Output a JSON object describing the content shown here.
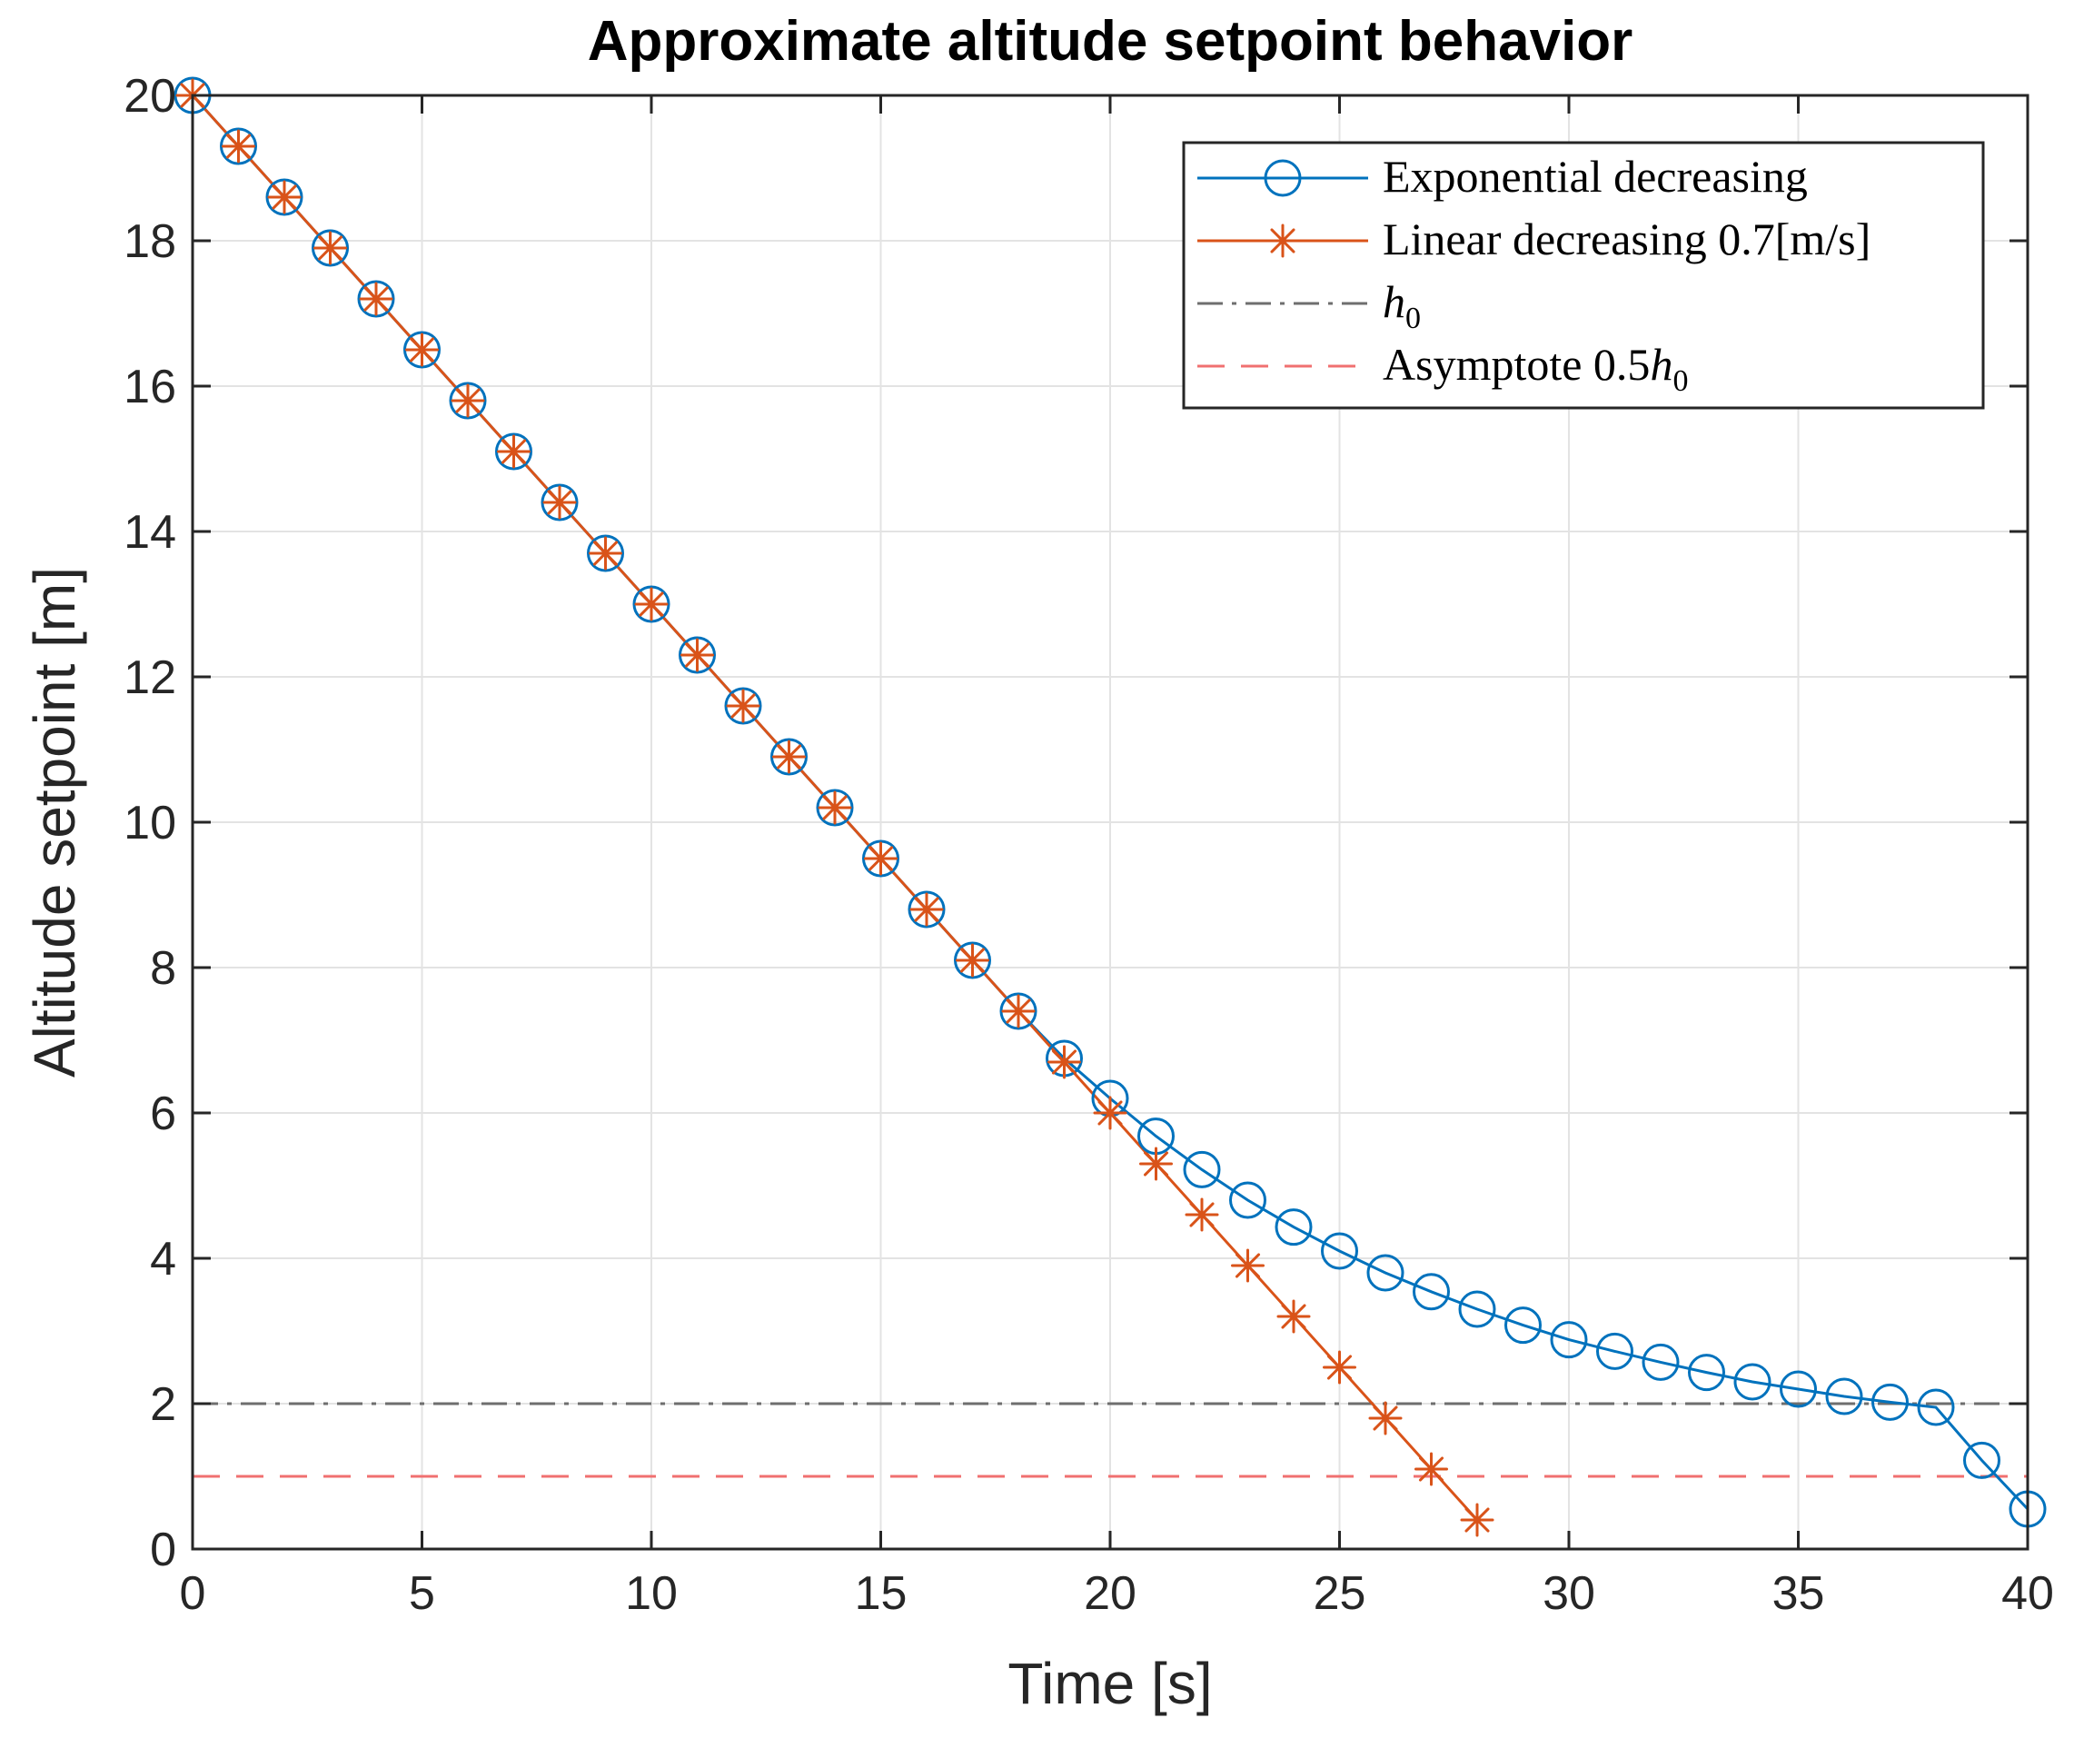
{
  "chart_data": {
    "type": "line",
    "title": "Approximate altitude setpoint behavior",
    "xlabel": "Time [s]",
    "ylabel": "Altitude setpoint [m]",
    "xlim": [
      0,
      40
    ],
    "ylim": [
      0,
      20
    ],
    "xticks": [
      0,
      5,
      10,
      15,
      20,
      25,
      30,
      35,
      40
    ],
    "yticks": [
      0,
      2,
      4,
      6,
      8,
      10,
      12,
      14,
      16,
      18,
      20
    ],
    "grid": true,
    "legend_position": "top-right",
    "series": [
      {
        "name": "Exponential decreasing",
        "marker": "circle",
        "color": "#0072BD",
        "x": [
          0,
          1,
          2,
          3,
          4,
          5,
          6,
          7,
          8,
          9,
          10,
          11,
          12,
          13,
          14,
          15,
          16,
          17,
          18,
          19,
          20,
          21,
          22,
          23,
          24,
          25,
          26,
          27,
          28,
          29,
          30,
          31,
          32,
          33,
          34,
          35,
          36,
          37,
          38,
          39,
          40
        ],
        "values": [
          20,
          19.3,
          18.6,
          17.9,
          17.2,
          16.5,
          15.8,
          15.1,
          14.4,
          13.7,
          13,
          12.3,
          11.6,
          10.9,
          10.2,
          9.5,
          8.8,
          8.1,
          7.4,
          6.75,
          6.2,
          5.68,
          5.22,
          4.8,
          4.43,
          4.1,
          3.8,
          3.54,
          3.3,
          3.08,
          2.88,
          2.72,
          2.57,
          2.43,
          2.3,
          2.2,
          2.1,
          2.02,
          1.95,
          1.22,
          0.55
        ]
      },
      {
        "name": "Linear decreasing 0.7[m/s]",
        "marker": "asterisk",
        "color": "#D95319",
        "x": [
          0,
          1,
          2,
          3,
          4,
          5,
          6,
          7,
          8,
          9,
          10,
          11,
          12,
          13,
          14,
          15,
          16,
          17,
          18,
          19,
          20,
          21,
          22,
          23,
          24,
          25,
          26,
          27,
          28
        ],
        "values": [
          20,
          19.3,
          18.6,
          17.9,
          17.2,
          16.5,
          15.8,
          15.1,
          14.4,
          13.7,
          13,
          12.3,
          11.6,
          10.9,
          10.2,
          9.5,
          8.8,
          8.1,
          7.4,
          6.7,
          6,
          5.3,
          4.6,
          3.9,
          3.2,
          2.5,
          1.8,
          1.1,
          0.4
        ]
      },
      {
        "name": "h",
        "subscript": "0",
        "style": "dash-dot",
        "color": "#6E6E6E",
        "x": [
          0,
          40
        ],
        "values": [
          2,
          2
        ]
      },
      {
        "name": "Asymptote 0.5",
        "math_suffix": "h",
        "subscript": "0",
        "style": "dashed",
        "color": "#F07070",
        "x": [
          0,
          40
        ],
        "values": [
          1,
          1
        ]
      }
    ]
  }
}
